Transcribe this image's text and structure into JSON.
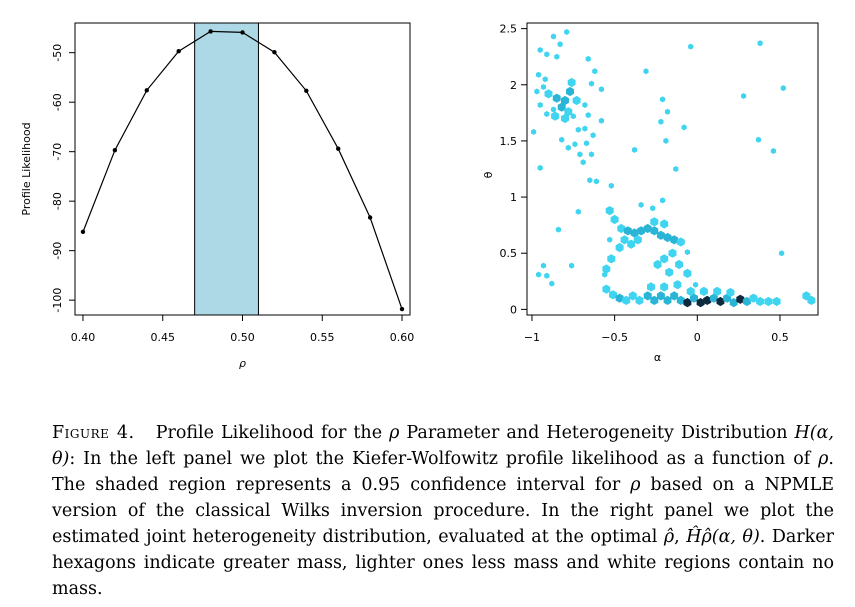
{
  "chart_data": [
    {
      "type": "line",
      "title": "",
      "xlabel": "ρ",
      "ylabel": "Profile Likelihood",
      "xlim": [
        0.395,
        0.605
      ],
      "ylim": [
        -103,
        -44
      ],
      "x_ticks": [
        "0.40",
        "0.45",
        "0.50",
        "0.55",
        "0.60"
      ],
      "x_tick_values": [
        0.4,
        0.45,
        0.5,
        0.55,
        0.6
      ],
      "y_ticks": [
        "-50",
        "-60",
        "-70",
        "-80",
        "-90",
        "-100"
      ],
      "y_tick_values": [
        -50,
        -60,
        -70,
        -80,
        -90,
        -100
      ],
      "shaded_interval": [
        0.47,
        0.51
      ],
      "shade_color": "#add8e6",
      "x": [
        0.4,
        0.42,
        0.44,
        0.46,
        0.48,
        0.5,
        0.52,
        0.54,
        0.56,
        0.58,
        0.6
      ],
      "y": [
        -86.2,
        -69.7,
        -57.6,
        -49.7,
        -45.7,
        -45.9,
        -49.9,
        -57.7,
        -69.4,
        -83.3,
        -101.8
      ]
    },
    {
      "type": "scatter",
      "title": "",
      "xlabel": "α",
      "ylabel": "θ",
      "xlim": [
        -1.03,
        0.73
      ],
      "ylim": [
        -0.05,
        2.55
      ],
      "x_ticks": [
        "−1",
        "−0.5",
        "0",
        "0.5"
      ],
      "x_tick_values": [
        -1,
        -0.5,
        0,
        0.5
      ],
      "y_ticks": [
        "0",
        "0.5",
        "1",
        "1.5",
        "2",
        "2.5"
      ],
      "y_tick_values": [
        0,
        0.5,
        1,
        1.5,
        2,
        2.5
      ],
      "colors": {
        "light": "#3fd4f0",
        "mid": "#2ab5d6",
        "dark": "#0e2a3f"
      },
      "legend": "Darker hexagons indicate greater mass",
      "scattered_points": [
        [
          -0.87,
          2.43
        ],
        [
          -0.79,
          2.47
        ],
        [
          -0.83,
          2.36
        ],
        [
          -0.95,
          2.31
        ],
        [
          -0.91,
          2.27
        ],
        [
          -0.85,
          2.25
        ],
        [
          -0.66,
          2.23
        ],
        [
          -0.62,
          2.12
        ],
        [
          -0.96,
          2.09
        ],
        [
          -0.92,
          2.05
        ],
        [
          -0.97,
          1.94
        ],
        [
          -0.93,
          1.98
        ],
        [
          -0.64,
          2.01
        ],
        [
          -0.58,
          1.96
        ],
        [
          -0.95,
          1.82
        ],
        [
          -0.91,
          1.74
        ],
        [
          -0.87,
          1.78
        ],
        [
          -0.68,
          1.82
        ],
        [
          -0.66,
          1.73
        ],
        [
          -0.75,
          1.72
        ],
        [
          -0.72,
          1.6
        ],
        [
          -0.68,
          1.61
        ],
        [
          -0.63,
          1.55
        ],
        [
          -0.67,
          1.48
        ],
        [
          -0.82,
          1.51
        ],
        [
          -0.78,
          1.44
        ],
        [
          -0.74,
          1.47
        ],
        [
          -0.99,
          1.58
        ],
        [
          -0.71,
          1.38
        ],
        [
          -0.69,
          1.31
        ],
        [
          -0.64,
          1.38
        ],
        [
          -0.58,
          1.68
        ],
        [
          -0.95,
          1.26
        ],
        [
          -0.31,
          2.12
        ],
        [
          -0.04,
          2.34
        ],
        [
          0.38,
          2.37
        ],
        [
          0.52,
          1.97
        ],
        [
          0.28,
          1.9
        ],
        [
          -0.21,
          1.87
        ],
        [
          -0.18,
          1.76
        ],
        [
          -0.22,
          1.67
        ],
        [
          -0.19,
          1.5
        ],
        [
          -0.38,
          1.42
        ],
        [
          -0.13,
          1.25
        ],
        [
          -0.08,
          1.62
        ],
        [
          0.37,
          1.51
        ],
        [
          0.46,
          1.41
        ],
        [
          -0.65,
          1.15
        ],
        [
          -0.61,
          1.14
        ],
        [
          -0.52,
          1.1
        ],
        [
          -0.72,
          0.87
        ],
        [
          -0.84,
          0.71
        ],
        [
          -0.53,
          0.62
        ],
        [
          -0.34,
          0.93
        ],
        [
          -0.27,
          0.9
        ],
        [
          -0.21,
          0.97
        ],
        [
          -0.06,
          0.51
        ],
        [
          -0.01,
          0.22
        ],
        [
          0.51,
          0.5
        ],
        [
          -0.93,
          0.39
        ],
        [
          -0.96,
          0.31
        ],
        [
          -0.91,
          0.3
        ],
        [
          -0.88,
          0.23
        ],
        [
          -0.76,
          0.39
        ],
        [
          -0.56,
          0.31
        ]
      ],
      "hexbins": [
        [
          -0.9,
          1.92,
          "light"
        ],
        [
          -0.85,
          1.88,
          "mid"
        ],
        [
          -0.8,
          1.86,
          "mid"
        ],
        [
          -0.77,
          1.94,
          "mid"
        ],
        [
          -0.82,
          1.8,
          "mid"
        ],
        [
          -0.78,
          1.76,
          "light"
        ],
        [
          -0.86,
          1.72,
          "light"
        ],
        [
          -0.73,
          1.86,
          "light"
        ],
        [
          -0.8,
          1.7,
          "light"
        ],
        [
          -0.76,
          2.02,
          "light"
        ],
        [
          -0.53,
          0.88,
          "light"
        ],
        [
          -0.5,
          0.8,
          "light"
        ],
        [
          -0.46,
          0.72,
          "light"
        ],
        [
          -0.42,
          0.7,
          "mid"
        ],
        [
          -0.38,
          0.68,
          "mid"
        ],
        [
          -0.34,
          0.7,
          "mid"
        ],
        [
          -0.3,
          0.72,
          "mid"
        ],
        [
          -0.26,
          0.7,
          "mid"
        ],
        [
          -0.22,
          0.66,
          "mid"
        ],
        [
          -0.18,
          0.64,
          "mid"
        ],
        [
          -0.14,
          0.62,
          "mid"
        ],
        [
          -0.1,
          0.6,
          "light"
        ],
        [
          -0.44,
          0.62,
          "light"
        ],
        [
          -0.4,
          0.58,
          "light"
        ],
        [
          -0.36,
          0.62,
          "light"
        ],
        [
          -0.26,
          0.78,
          "light"
        ],
        [
          -0.2,
          0.76,
          "light"
        ],
        [
          -0.15,
          0.5,
          "light"
        ],
        [
          -0.2,
          0.45,
          "light"
        ],
        [
          -0.24,
          0.4,
          "light"
        ],
        [
          -0.11,
          0.4,
          "light"
        ],
        [
          -0.06,
          0.32,
          "light"
        ],
        [
          -0.17,
          0.33,
          "light"
        ],
        [
          -0.47,
          0.55,
          "light"
        ],
        [
          -0.52,
          0.45,
          "light"
        ],
        [
          -0.55,
          0.36,
          "light"
        ],
        [
          -0.55,
          0.18,
          "light"
        ],
        [
          -0.51,
          0.13,
          "light"
        ],
        [
          -0.47,
          0.1,
          "mid"
        ],
        [
          -0.43,
          0.08,
          "light"
        ],
        [
          -0.39,
          0.12,
          "light"
        ],
        [
          -0.35,
          0.08,
          "light"
        ],
        [
          -0.3,
          0.12,
          "mid"
        ],
        [
          -0.26,
          0.08,
          "mid"
        ],
        [
          -0.22,
          0.12,
          "mid"
        ],
        [
          -0.18,
          0.08,
          "mid"
        ],
        [
          -0.14,
          0.12,
          "mid"
        ],
        [
          -0.1,
          0.08,
          "mid"
        ],
        [
          -0.06,
          0.06,
          "dark"
        ],
        [
          -0.02,
          0.1,
          "mid"
        ],
        [
          0.02,
          0.06,
          "dark"
        ],
        [
          0.06,
          0.08,
          "dark"
        ],
        [
          0.1,
          0.1,
          "mid"
        ],
        [
          0.14,
          0.07,
          "dark"
        ],
        [
          0.18,
          0.1,
          "mid"
        ],
        [
          0.22,
          0.06,
          "mid"
        ],
        [
          0.26,
          0.09,
          "dark"
        ],
        [
          0.3,
          0.07,
          "mid"
        ],
        [
          0.34,
          0.1,
          "light"
        ],
        [
          0.38,
          0.07,
          "light"
        ],
        [
          0.43,
          0.07,
          "light"
        ],
        [
          0.48,
          0.07,
          "light"
        ],
        [
          -0.28,
          0.2,
          "light"
        ],
        [
          -0.2,
          0.2,
          "light"
        ],
        [
          -0.12,
          0.22,
          "light"
        ],
        [
          -0.04,
          0.16,
          "light"
        ],
        [
          0.04,
          0.16,
          "light"
        ],
        [
          0.12,
          0.16,
          "light"
        ],
        [
          0.2,
          0.15,
          "light"
        ],
        [
          0.66,
          0.12,
          "light"
        ],
        [
          0.69,
          0.08,
          "light"
        ]
      ]
    }
  ],
  "caption": {
    "figure_label": "Figure 4.",
    "text_parts": [
      "Profile Likelihood for the ",
      "ρ",
      " Parameter and Heterogeneity Distribution ",
      "H(α, θ)",
      ": In the left panel we plot the Kiefer-Wolfowitz profile likelihood as a function of ",
      "ρ",
      ". The shaded region represents a 0.95 confidence interval for ",
      "ρ",
      " based on a NPMLE version of the classical Wilks inversion procedure. In the right panel we plot the estimated joint heterogeneity distribution, evaluated at the optimal ",
      "ρ̂",
      ", ",
      "Ĥρ̂(α, θ)",
      ". Darker hexagons indicate greater mass, lighter ones less mass and white regions contain no mass."
    ]
  }
}
